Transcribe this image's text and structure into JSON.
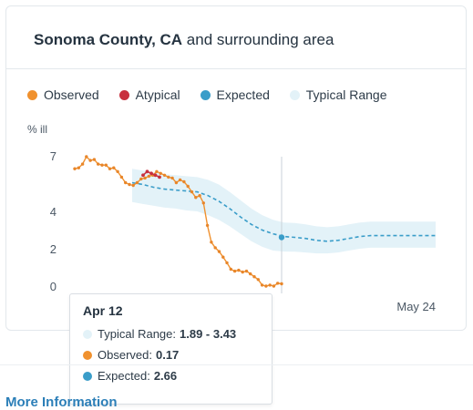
{
  "header": {
    "location_bold": "Sonoma County, CA",
    "location_rest": " and surrounding area"
  },
  "legend": [
    {
      "label": "Observed",
      "color": "#f0912e"
    },
    {
      "label": "Atypical",
      "color": "#c8303e"
    },
    {
      "label": "Expected",
      "color": "#3a9dc9"
    },
    {
      "label": "Typical Range",
      "color": "#e3f2f8"
    }
  ],
  "chart_data": {
    "type": "line",
    "ylabel": "% ill",
    "yticks": [
      0,
      2,
      4,
      7
    ],
    "x_tick_label": "May 24",
    "ylim": [
      0,
      7
    ],
    "grid": false,
    "legend_position": "top",
    "series": [
      {
        "name": "Observed",
        "values": [
          6.35,
          6.4,
          6.6,
          7.0,
          6.8,
          6.85,
          6.6,
          6.55,
          6.55,
          6.35,
          6.4,
          6.2,
          5.9,
          5.6,
          5.5,
          5.45,
          5.6,
          5.8,
          5.85,
          5.95,
          6.0,
          6.2,
          6.1,
          6.0,
          5.9,
          5.85,
          5.6,
          5.75,
          5.65,
          5.4,
          5.1,
          4.8,
          4.9,
          4.5,
          3.3,
          2.4,
          2.1,
          1.9,
          1.6,
          1.3,
          0.95,
          0.85,
          0.9,
          0.8,
          0.85,
          0.7,
          0.55,
          0.4,
          0.1,
          0.05,
          0.1,
          0.05,
          0.2,
          0.17
        ]
      },
      {
        "name": "Atypical",
        "values": [
          6.0,
          6.2,
          6.1,
          6.0,
          5.9
        ]
      },
      {
        "name": "Expected",
        "values": [
          5.6,
          5.5,
          5.35,
          5.25,
          5.2,
          5.15,
          5.1,
          4.9,
          4.6,
          4.2,
          3.75,
          3.35,
          3.05,
          2.85,
          2.7,
          2.66,
          2.6,
          2.5,
          2.45,
          2.5,
          2.6,
          2.7,
          2.75,
          2.75,
          2.75,
          2.75,
          2.75,
          2.75,
          2.75
        ]
      },
      {
        "name": "Typical Range Low",
        "values": [
          4.55,
          4.45,
          4.35,
          4.25,
          4.2,
          4.1,
          4.05,
          3.85,
          3.6,
          3.25,
          2.85,
          2.45,
          2.15,
          1.95,
          1.9,
          1.89,
          1.85,
          1.8,
          1.8,
          1.85,
          1.95,
          2.05,
          2.1,
          2.1,
          2.1,
          2.1,
          2.1,
          2.1,
          2.1
        ]
      },
      {
        "name": "Typical Range High",
        "values": [
          6.35,
          6.25,
          6.15,
          6.05,
          6.0,
          5.95,
          5.9,
          5.75,
          5.5,
          5.1,
          4.65,
          4.2,
          3.85,
          3.6,
          3.45,
          3.43,
          3.35,
          3.25,
          3.2,
          3.25,
          3.35,
          3.45,
          3.5,
          3.5,
          3.5,
          3.5,
          3.5,
          3.5,
          3.5
        ]
      }
    ]
  },
  "tooltip": {
    "date": "Apr 12",
    "typical_label": "Typical Range:",
    "typical_value": "1.89 - 3.43",
    "observed_label": "Observed:",
    "observed_value": "0.17",
    "expected_label": "Expected:",
    "expected_value": "2.66"
  },
  "links": {
    "more_info": "More Information"
  }
}
